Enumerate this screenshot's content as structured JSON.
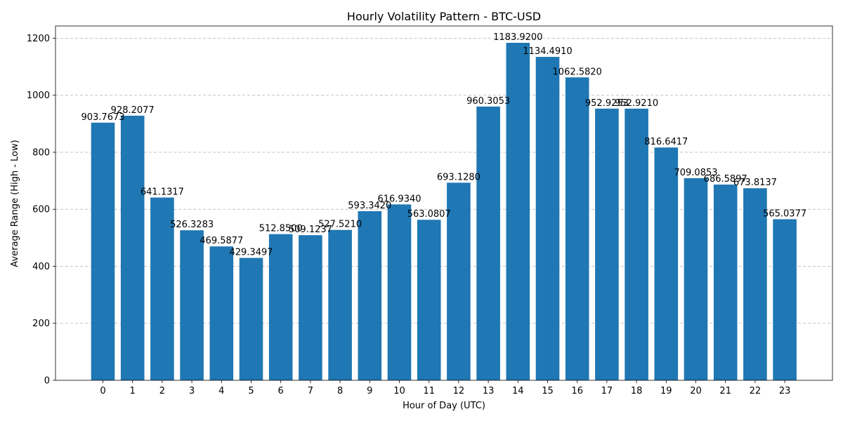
{
  "chart_data": {
    "type": "bar",
    "title": "Hourly Volatility Pattern - BTC-USD",
    "xlabel": "Hour of Day (UTC)",
    "ylabel": "Average Range (High - Low)",
    "categories": [
      "0",
      "1",
      "2",
      "3",
      "4",
      "5",
      "6",
      "7",
      "8",
      "9",
      "10",
      "11",
      "12",
      "13",
      "14",
      "15",
      "16",
      "17",
      "18",
      "19",
      "20",
      "21",
      "22",
      "23"
    ],
    "values": [
      903.7673,
      928.2077,
      641.1317,
      526.3283,
      469.5877,
      429.3497,
      512.85,
      509.1237,
      527.521,
      593.342,
      616.934,
      563.0807,
      693.128,
      960.3053,
      1183.92,
      1134.491,
      1062.582,
      952.9253,
      952.921,
      816.6417,
      709.0853,
      686.5897,
      673.8137,
      565.0377
    ],
    "value_labels": [
      "903.7673",
      "928.2077",
      "641.1317",
      "526.3283",
      "469.5877",
      "429.3497",
      "512.8500",
      "509.1237",
      "527.5210",
      "593.3420",
      "616.9340",
      "563.0807",
      "693.1280",
      "960.3053",
      "1183.9200",
      "1134.4910",
      "1062.5820",
      "952.9253",
      "952.9210",
      "816.6417",
      "709.0853",
      "686.5897",
      "673.8137",
      "565.0377"
    ],
    "yticks": [
      "0",
      "200",
      "400",
      "600",
      "800",
      "1000",
      "1200"
    ],
    "ylim": [
      0,
      1243
    ],
    "grid": "y-dashed",
    "bar_color": "#1f77b4"
  }
}
